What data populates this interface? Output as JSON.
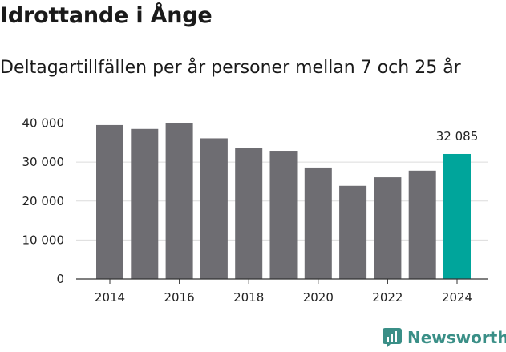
{
  "title": "Idrottande i Ånge",
  "subtitle": "Deltagartillfällen per år personer mellan 7 och 25 år",
  "brand": "Newsworthy",
  "colors": {
    "bar": "#6e6d72",
    "highlight": "#00a59b",
    "brand": "#3a8f87",
    "grid": "#dcdcdc"
  },
  "chart_data": {
    "type": "bar",
    "categories": [
      2014,
      2015,
      2016,
      2017,
      2018,
      2019,
      2020,
      2021,
      2022,
      2023,
      2024
    ],
    "values": [
      39500,
      38500,
      40100,
      36100,
      33700,
      32900,
      28600,
      23900,
      26100,
      27800,
      32085
    ],
    "highlight_index": 10,
    "data_labels": [
      {
        "index": 10,
        "text": "32 085"
      }
    ],
    "xticks": [
      2014,
      2016,
      2018,
      2020,
      2022,
      2024
    ],
    "xtick_labels": [
      "2014",
      "2016",
      "2018",
      "2020",
      "2022",
      "2024"
    ],
    "yticks": [
      0,
      10000,
      20000,
      30000,
      40000
    ],
    "ytick_labels": [
      "0",
      "10 000",
      "20 000",
      "30 000",
      "40 000"
    ],
    "ylim": [
      0,
      40000
    ],
    "grid": true,
    "xlabel": "",
    "ylabel": ""
  }
}
